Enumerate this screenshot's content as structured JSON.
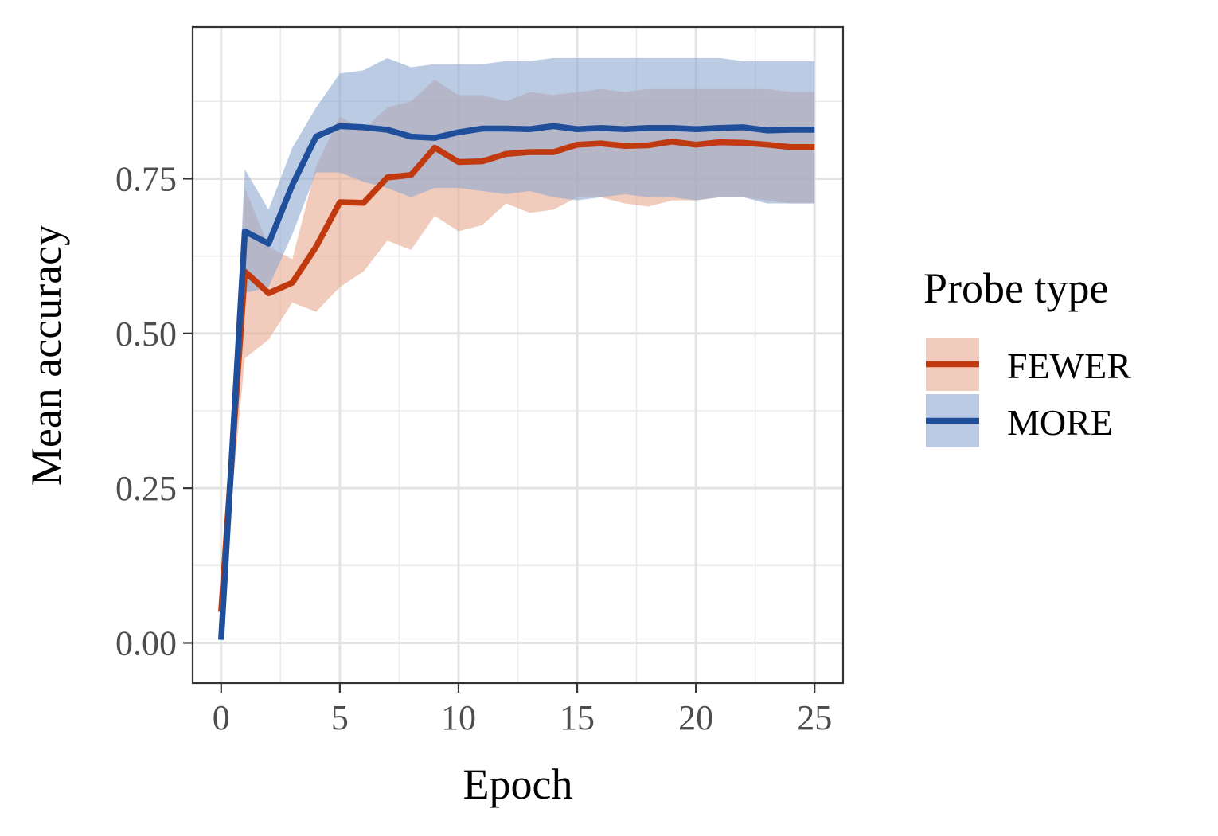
{
  "chart_data": {
    "type": "line",
    "title": "",
    "xlabel": "Epoch",
    "ylabel": "Mean accuracy",
    "xlim": [
      -1.2,
      26.2
    ],
    "ylim": [
      -0.065,
      0.995
    ],
    "x_ticks": [
      0,
      5,
      10,
      15,
      20,
      25
    ],
    "x_tick_labels": [
      "0",
      "5",
      "10",
      "15",
      "20",
      "25"
    ],
    "y_ticks": [
      0,
      0.25,
      0.5,
      0.75
    ],
    "y_tick_labels": [
      "0.00",
      "0.25",
      "0.50",
      "0.75"
    ],
    "grid": true,
    "legend": {
      "title": "Probe type",
      "position": "right"
    },
    "x": [
      0,
      1,
      2,
      3,
      4,
      5,
      6,
      7,
      8,
      9,
      10,
      11,
      12,
      13,
      14,
      15,
      16,
      17,
      18,
      19,
      20,
      21,
      22,
      23,
      24,
      25
    ],
    "series": [
      {
        "name": "FEWER",
        "color": "#C0390F",
        "band_color": "#E8A890",
        "values": [
          0.05,
          0.6,
          0.565,
          0.582,
          0.64,
          0.712,
          0.711,
          0.752,
          0.756,
          0.8,
          0.777,
          0.778,
          0.79,
          0.793,
          0.793,
          0.805,
          0.807,
          0.803,
          0.804,
          0.81,
          0.805,
          0.809,
          0.808,
          0.805,
          0.801,
          0.801
        ],
        "lower": [
          0.05,
          0.46,
          0.49,
          0.55,
          0.535,
          0.575,
          0.6,
          0.65,
          0.635,
          0.69,
          0.665,
          0.675,
          0.71,
          0.695,
          0.7,
          0.72,
          0.72,
          0.71,
          0.705,
          0.715,
          0.715,
          0.72,
          0.72,
          0.715,
          0.71,
          0.71
        ],
        "upper": [
          0.05,
          0.735,
          0.64,
          0.62,
          0.77,
          0.85,
          0.83,
          0.865,
          0.875,
          0.91,
          0.885,
          0.885,
          0.875,
          0.89,
          0.885,
          0.89,
          0.895,
          0.89,
          0.895,
          0.895,
          0.895,
          0.895,
          0.895,
          0.895,
          0.89,
          0.89
        ]
      },
      {
        "name": "MORE",
        "color": "#1F4E9B",
        "band_color": "#8EA8D1",
        "values": [
          0.005,
          0.665,
          0.645,
          0.74,
          0.818,
          0.835,
          0.833,
          0.829,
          0.818,
          0.816,
          0.825,
          0.831,
          0.831,
          0.83,
          0.835,
          0.83,
          0.832,
          0.83,
          0.832,
          0.832,
          0.83,
          0.832,
          0.833,
          0.828,
          0.829,
          0.829
        ],
        "lower": [
          0.005,
          0.565,
          0.575,
          0.66,
          0.76,
          0.76,
          0.745,
          0.735,
          0.72,
          0.735,
          0.735,
          0.73,
          0.725,
          0.73,
          0.72,
          0.715,
          0.72,
          0.725,
          0.72,
          0.72,
          0.715,
          0.72,
          0.72,
          0.71,
          0.71,
          0.71
        ],
        "upper": [
          0.005,
          0.765,
          0.7,
          0.8,
          0.865,
          0.92,
          0.925,
          0.945,
          0.93,
          0.935,
          0.935,
          0.935,
          0.94,
          0.94,
          0.945,
          0.945,
          0.945,
          0.945,
          0.945,
          0.945,
          0.945,
          0.945,
          0.94,
          0.94,
          0.94,
          0.94
        ]
      }
    ]
  }
}
